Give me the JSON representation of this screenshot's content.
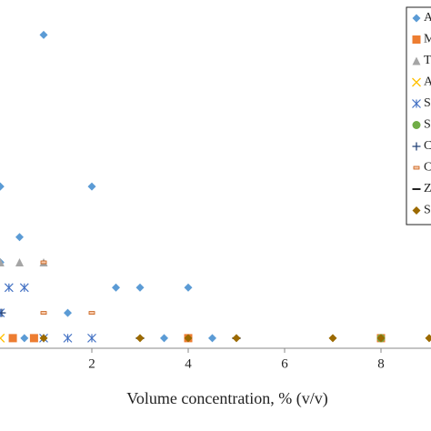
{
  "chart_data": {
    "type": "scatter",
    "x_label": "Volume concentration, % (v/v)",
    "xlim": [
      0,
      9
    ],
    "xticks": [
      2,
      4,
      6,
      8
    ],
    "ylim": [
      -0.4,
      13.4
    ],
    "legend": "top-right",
    "series": [
      {
        "name": "A",
        "color": "#5b9bd5",
        "marker": "diamond",
        "x": [
          1,
          0.1,
          2,
          0.5,
          0.1,
          2.5,
          3,
          4,
          1.5,
          0.6,
          3.5,
          4.5
        ],
        "values": [
          12,
          6,
          6,
          4,
          3,
          2,
          2,
          2,
          1,
          0,
          0,
          0
        ]
      },
      {
        "name": "M",
        "color": "#ed7d31",
        "marker": "square",
        "x": [
          0.36,
          0.8,
          4,
          8
        ],
        "values": [
          0,
          0,
          0,
          0
        ]
      },
      {
        "name": "T",
        "color": "#a5a5a5",
        "marker": "triangle",
        "x": [
          0.1,
          0.5,
          1
        ],
        "values": [
          3,
          3,
          3
        ]
      },
      {
        "name": "A",
        "color": "#ffc000",
        "marker": "x",
        "x": [
          0.1
        ],
        "values": [
          0
        ]
      },
      {
        "name": "S",
        "color": "#4472c4",
        "marker": "star",
        "x": [
          0.28,
          0.6,
          0.1,
          1,
          1.5,
          2
        ],
        "values": [
          2,
          2,
          1,
          0,
          0,
          0
        ]
      },
      {
        "name": "S",
        "color": "#70ad47",
        "marker": "circle",
        "x": [
          8
        ],
        "values": [
          0
        ]
      },
      {
        "name": "C",
        "color": "#264478",
        "marker": "plus",
        "x": [
          0.13
        ],
        "values": [
          1
        ]
      },
      {
        "name": "C",
        "color": "#c55a11",
        "marker": "dash-box",
        "x": [
          1,
          2,
          1
        ],
        "values": [
          3,
          1,
          1
        ]
      },
      {
        "name": "Z",
        "color": "#222222",
        "marker": "dash",
        "x": [
          3,
          5
        ],
        "values": [
          0,
          0
        ]
      },
      {
        "name": "S",
        "color": "#9c6a00",
        "marker": "diamond",
        "x": [
          1,
          3,
          4,
          5,
          7,
          8,
          9
        ],
        "values": [
          0,
          0,
          0,
          0,
          0,
          0,
          0
        ]
      }
    ]
  }
}
